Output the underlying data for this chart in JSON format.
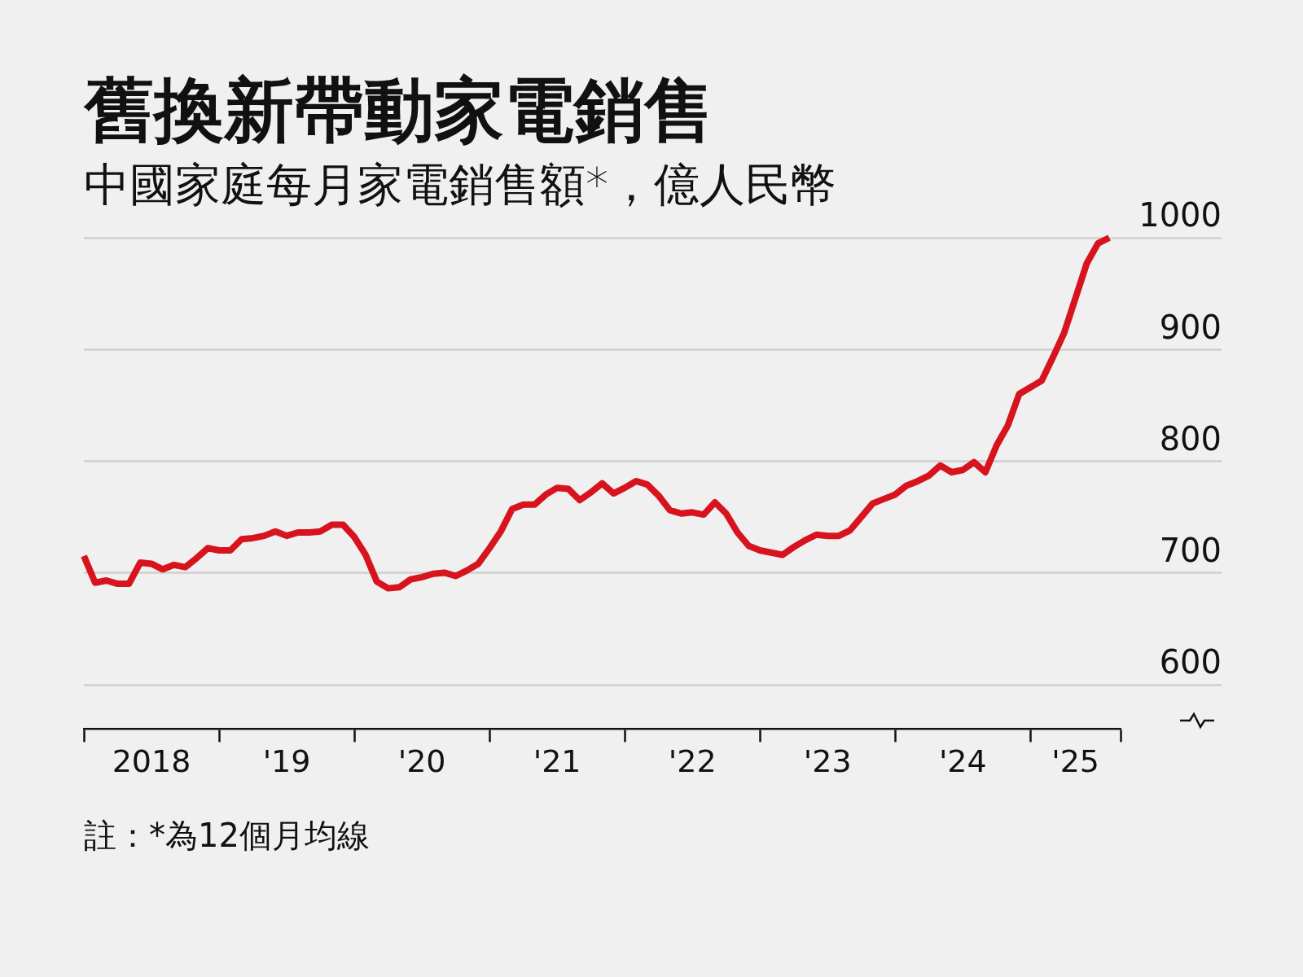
{
  "chart_data": {
    "type": "line",
    "title": "舊換新帶動家電銷售",
    "subtitle": "中國家庭每月家電銷售額*，億人民幣",
    "annotations": [
      "註：*為12個月均線"
    ],
    "color": "#d7141e",
    "x": [
      "2018-01",
      "2018-02",
      "2018-03",
      "2018-04",
      "2018-05",
      "2018-06",
      "2018-07",
      "2018-08",
      "2018-09",
      "2018-10",
      "2018-11",
      "2018-12",
      "2019-01",
      "2019-02",
      "2019-03",
      "2019-04",
      "2019-05",
      "2019-06",
      "2019-07",
      "2019-08",
      "2019-09",
      "2019-10",
      "2019-11",
      "2019-12",
      "2020-01",
      "2020-02",
      "2020-03",
      "2020-04",
      "2020-05",
      "2020-06",
      "2020-07",
      "2020-08",
      "2020-09",
      "2020-10",
      "2020-11",
      "2020-12",
      "2021-01",
      "2021-02",
      "2021-03",
      "2021-04",
      "2021-05",
      "2021-06",
      "2021-07",
      "2021-08",
      "2021-09",
      "2021-10",
      "2021-11",
      "2021-12",
      "2022-01",
      "2022-02",
      "2022-03",
      "2022-04",
      "2022-05",
      "2022-06",
      "2022-07",
      "2022-08",
      "2022-09",
      "2022-10",
      "2022-11",
      "2022-12",
      "2023-01",
      "2023-02",
      "2023-03",
      "2023-04",
      "2023-05",
      "2023-06",
      "2023-07",
      "2023-08",
      "2023-09",
      "2023-10",
      "2023-11",
      "2023-12",
      "2024-01",
      "2024-02",
      "2024-03",
      "2024-04",
      "2024-05",
      "2024-06",
      "2024-07",
      "2024-08",
      "2024-09",
      "2024-10",
      "2024-11",
      "2024-12",
      "2025-01",
      "2025-02",
      "2025-03",
      "2025-04",
      "2025-05",
      "2025-06",
      "2025-07",
      "2025-08"
    ],
    "values": [
      715,
      691,
      693,
      690,
      690,
      709,
      708,
      703,
      707,
      705,
      713,
      722,
      720,
      720,
      730,
      731,
      733,
      737,
      733,
      736,
      736,
      737,
      743,
      743,
      732,
      716,
      692,
      686,
      687,
      694,
      696,
      699,
      700,
      697,
      702,
      708,
      722,
      737,
      757,
      761,
      761,
      770,
      776,
      775,
      765,
      772,
      780,
      771,
      776,
      782,
      779,
      769,
      756,
      753,
      754,
      752,
      763,
      753,
      736,
      724,
      720,
      718,
      716,
      723,
      729,
      734,
      733,
      733,
      738,
      750,
      762,
      766,
      770,
      778,
      782,
      787,
      796,
      790,
      792,
      799,
      790,
      814,
      832,
      860,
      866,
      872,
      893,
      915,
      946,
      977,
      995,
      1000
    ],
    "xlim": [
      "2018-01",
      "2025-09"
    ],
    "xticks": [
      {
        "value": "2018-01",
        "label": null
      },
      {
        "value": "2018-07",
        "label": "2018"
      },
      {
        "value": "2019-01",
        "label": null
      },
      {
        "value": "2019-07",
        "label": "'19"
      },
      {
        "value": "2020-01",
        "label": null
      },
      {
        "value": "2020-07",
        "label": "'20"
      },
      {
        "value": "2021-01",
        "label": null
      },
      {
        "value": "2021-07",
        "label": "'21"
      },
      {
        "value": "2022-01",
        "label": null
      },
      {
        "value": "2022-07",
        "label": "'22"
      },
      {
        "value": "2023-01",
        "label": null
      },
      {
        "value": "2023-07",
        "label": "'23"
      },
      {
        "value": "2024-01",
        "label": null
      },
      {
        "value": "2024-07",
        "label": "'24"
      },
      {
        "value": "2025-01",
        "label": null
      },
      {
        "value": "2025-05",
        "label": "'25"
      },
      {
        "value": "2025-09",
        "label": null
      }
    ],
    "ylim": [
      560,
      1000
    ],
    "yticks": [
      600,
      700,
      800,
      900,
      1000
    ],
    "grid": "y"
  }
}
